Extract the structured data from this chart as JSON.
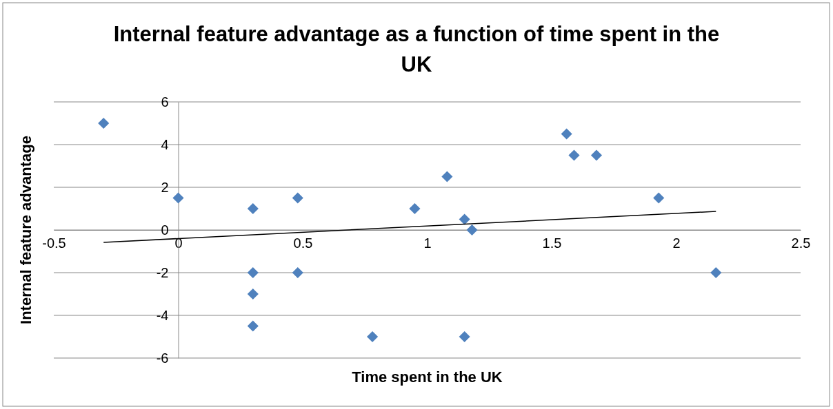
{
  "chart_data": {
    "type": "scatter",
    "title": "Internal feature advantage as a function of time spent in the UK",
    "xlabel": "Time spent in the UK",
    "ylabel": "Internal feature advantage",
    "xlim": [
      -0.5,
      2.5
    ],
    "xticks": [
      -0.5,
      0,
      0.5,
      1,
      1.5,
      2,
      2.5
    ],
    "ylim": [
      -6,
      6
    ],
    "yticks": [
      -6,
      -4,
      -2,
      0,
      2,
      4,
      6
    ],
    "grid": "y",
    "marker": "diamond",
    "series": [
      {
        "color": "#4f81bd",
        "x": [
          -0.3,
          0,
          0.3,
          0.48,
          0.3,
          0.3,
          0.3,
          0.48,
          0.78,
          0.95,
          1.08,
          1.15,
          1.18,
          1.15,
          1.56,
          1.59,
          1.68,
          1.93,
          2.16
        ],
        "values": [
          5,
          1.5,
          1,
          1.5,
          -2,
          -3,
          -4.5,
          -2,
          -5,
          1,
          2.5,
          0.5,
          0,
          -5,
          4.5,
          3.5,
          3.5,
          1.5,
          -2
        ]
      },
      {
        "type": "line",
        "color": "#000000",
        "marker": "none",
        "x": [
          -0.3,
          2.16
        ],
        "values": [
          -0.58,
          0.87
        ]
      }
    ]
  }
}
